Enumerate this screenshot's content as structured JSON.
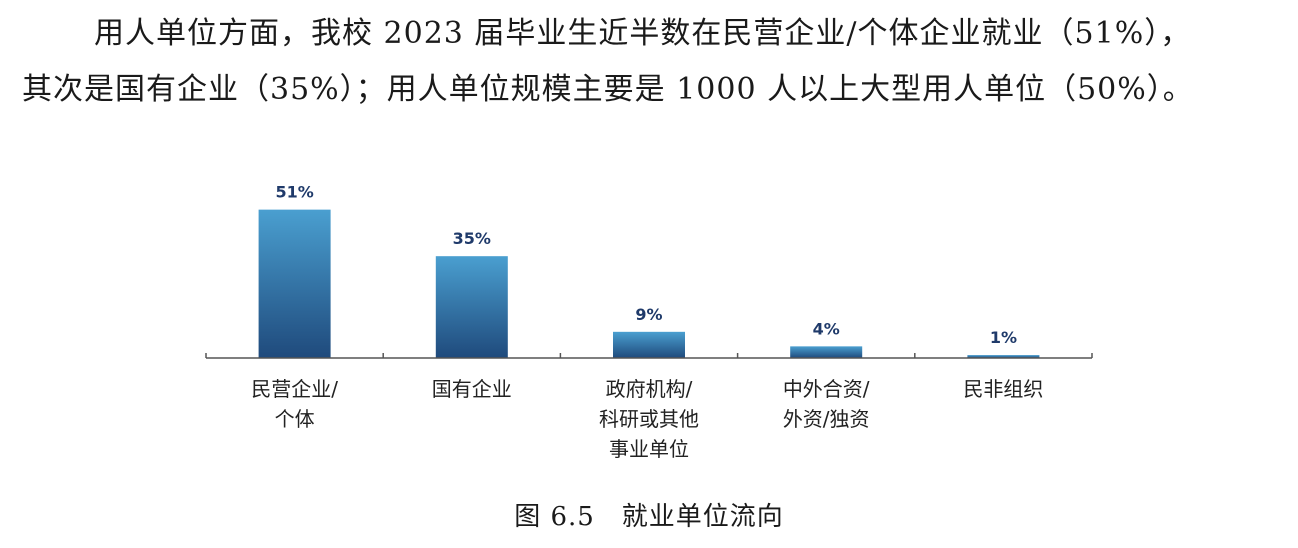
{
  "text": {
    "line1": "用人单位方面，我校 2023 届毕业生近半数在民营企业/个体企业就业（51%），",
    "line2": "其次是国有企业（35%）；用人单位规模主要是 1000 人以上大型用人单位（50%）。"
  },
  "caption": "图 6.5　就业单位流向",
  "chart_data": {
    "type": "bar",
    "categories": [
      [
        "民营企业/",
        "个体"
      ],
      [
        "国有企业"
      ],
      [
        "政府机构/",
        "科研或其他",
        "事业单位"
      ],
      [
        "中外合资/",
        "外资/独资"
      ],
      [
        "民非组织"
      ]
    ],
    "values": [
      51,
      35,
      9,
      4,
      1
    ],
    "value_labels": [
      "51%",
      "35%",
      "9%",
      "4%",
      "1%"
    ],
    "ylim": [
      0,
      55
    ],
    "grid": false,
    "legend": "none",
    "colors": {
      "bar_top": "#4a9fd0",
      "bar_bottom": "#1f4a7c",
      "axis": "#555555"
    }
  }
}
